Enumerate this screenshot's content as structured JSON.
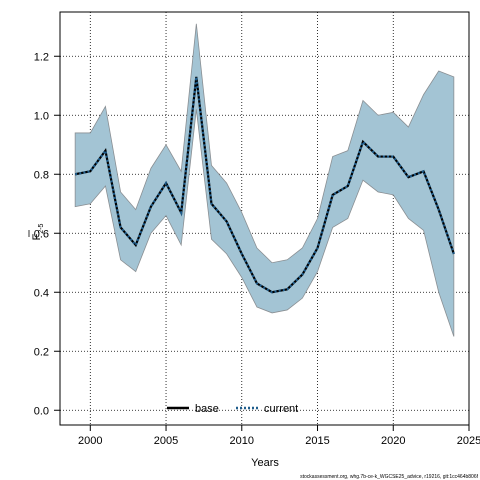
{
  "chart_data": {
    "type": "line",
    "xlabel": "Years",
    "ylabel": {
      "main": "F",
      "sub": "2-5"
    },
    "xlim": [
      1998,
      2025
    ],
    "ylim": [
      -0.05,
      1.35
    ],
    "xticks": [
      2000,
      2005,
      2010,
      2015,
      2020,
      2025
    ],
    "yticks": [
      0.0,
      0.2,
      0.4,
      0.6,
      0.8,
      1.0,
      1.2
    ],
    "xtick_labels": [
      "2000",
      "2005",
      "2010",
      "2015",
      "2020",
      "2025"
    ],
    "ytick_labels": [
      "0.0",
      "0.2",
      "0.4",
      "0.6",
      "0.8",
      "1.0",
      "1.2"
    ],
    "grid": true,
    "legend_position": "bottom-center",
    "x": [
      1999,
      2000,
      2001,
      2002,
      2003,
      2004,
      2005,
      2006,
      2007,
      2008,
      2009,
      2010,
      2011,
      2012,
      2013,
      2014,
      2015,
      2016,
      2017,
      2018,
      2019,
      2020,
      2021,
      2022,
      2023,
      2024
    ],
    "band": {
      "color": "#a3c4d4",
      "edge_color": "#8a8f93",
      "upper": [
        0.94,
        0.94,
        1.03,
        0.74,
        0.68,
        0.82,
        0.9,
        0.81,
        1.31,
        0.83,
        0.77,
        0.67,
        0.55,
        0.5,
        0.51,
        0.55,
        0.65,
        0.86,
        0.88,
        1.05,
        1.0,
        1.01,
        0.96,
        1.07,
        1.15,
        1.13
      ],
      "lower": [
        0.69,
        0.7,
        0.76,
        0.51,
        0.47,
        0.6,
        0.66,
        0.56,
        1.02,
        0.58,
        0.53,
        0.45,
        0.35,
        0.33,
        0.34,
        0.38,
        0.47,
        0.62,
        0.65,
        0.78,
        0.74,
        0.73,
        0.65,
        0.61,
        0.4,
        0.25
      ]
    },
    "series": [
      {
        "name": "base",
        "style": "solid",
        "color": "#000000",
        "values": [
          0.8,
          0.81,
          0.88,
          0.62,
          0.56,
          0.69,
          0.77,
          0.67,
          1.13,
          0.7,
          0.64,
          0.53,
          0.43,
          0.4,
          0.41,
          0.46,
          0.55,
          0.73,
          0.76,
          0.91,
          0.86,
          0.86,
          0.79,
          0.81,
          0.68,
          0.53
        ]
      },
      {
        "name": "current",
        "style": "dotted",
        "color": "#000000",
        "dot_color": "#1f5d8c",
        "values": [
          0.8,
          0.81,
          0.88,
          0.62,
          0.56,
          0.69,
          0.77,
          0.67,
          1.13,
          0.7,
          0.64,
          0.53,
          0.43,
          0.4,
          0.41,
          0.46,
          0.55,
          0.73,
          0.76,
          0.91,
          0.86,
          0.86,
          0.79,
          0.81,
          0.68,
          0.53
        ]
      }
    ]
  },
  "footer": "stockassessment.org, whg.7b-ce-k_WGCSE25_advice, r19216, git:1cc464b806f"
}
